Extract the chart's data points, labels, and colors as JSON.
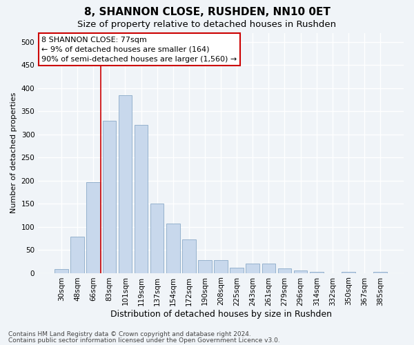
{
  "title": "8, SHANNON CLOSE, RUSHDEN, NN10 0ET",
  "subtitle": "Size of property relative to detached houses in Rushden",
  "xlabel": "Distribution of detached houses by size in Rushden",
  "ylabel": "Number of detached properties",
  "bar_color": "#c8d8ec",
  "bar_edge_color": "#8aaac8",
  "categories": [
    "30sqm",
    "48sqm",
    "66sqm",
    "83sqm",
    "101sqm",
    "119sqm",
    "137sqm",
    "154sqm",
    "172sqm",
    "190sqm",
    "208sqm",
    "225sqm",
    "243sqm",
    "261sqm",
    "279sqm",
    "296sqm",
    "314sqm",
    "332sqm",
    "350sqm",
    "367sqm",
    "385sqm"
  ],
  "values": [
    8,
    78,
    197,
    330,
    385,
    320,
    150,
    107,
    72,
    28,
    28,
    12,
    20,
    20,
    10,
    5,
    3,
    0,
    2,
    0,
    3
  ],
  "ylim": [
    0,
    520
  ],
  "yticks": [
    0,
    50,
    100,
    150,
    200,
    250,
    300,
    350,
    400,
    450,
    500
  ],
  "property_line_x": 2.45,
  "property_line_color": "#cc0000",
  "annotation_text": "8 SHANNON CLOSE: 77sqm\n← 9% of detached houses are smaller (164)\n90% of semi-detached houses are larger (1,560) →",
  "annotation_box_color": "#ffffff",
  "annotation_box_edge_color": "#cc0000",
  "footer_line1": "Contains HM Land Registry data © Crown copyright and database right 2024.",
  "footer_line2": "Contains public sector information licensed under the Open Government Licence v3.0.",
  "background_color": "#f0f4f8",
  "plot_background_color": "#f0f4f8",
  "grid_color": "#ffffff",
  "title_fontsize": 11,
  "subtitle_fontsize": 9.5,
  "xlabel_fontsize": 9,
  "ylabel_fontsize": 8,
  "tick_fontsize": 7.5,
  "footer_fontsize": 6.5,
  "annotation_fontsize": 8
}
